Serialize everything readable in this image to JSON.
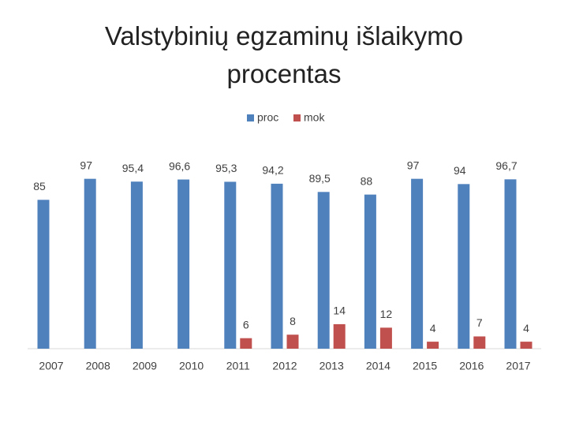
{
  "chart_data": {
    "type": "bar",
    "title": "Valstybinių egzaminų išlaikymo procentas",
    "categories": [
      "2007",
      "2008",
      "2009",
      "2010",
      "2011",
      "2012",
      "2013",
      "2014",
      "2015",
      "2016",
      "2017"
    ],
    "series": [
      {
        "name": "proc",
        "color": "#4f81bd",
        "values": [
          85,
          97,
          95.4,
          96.6,
          95.3,
          94.2,
          89.5,
          88,
          97,
          94,
          96.7
        ],
        "value_labels": [
          "85",
          "97",
          "95,4",
          "96,6",
          "95,3",
          "94,2",
          "89,5",
          "88",
          "97",
          "94",
          "96,7"
        ]
      },
      {
        "name": "mok",
        "color": "#c0504d",
        "values": [
          null,
          null,
          null,
          null,
          6,
          8,
          14,
          12,
          4,
          7,
          4
        ]
      }
    ],
    "legend": "top"
  }
}
